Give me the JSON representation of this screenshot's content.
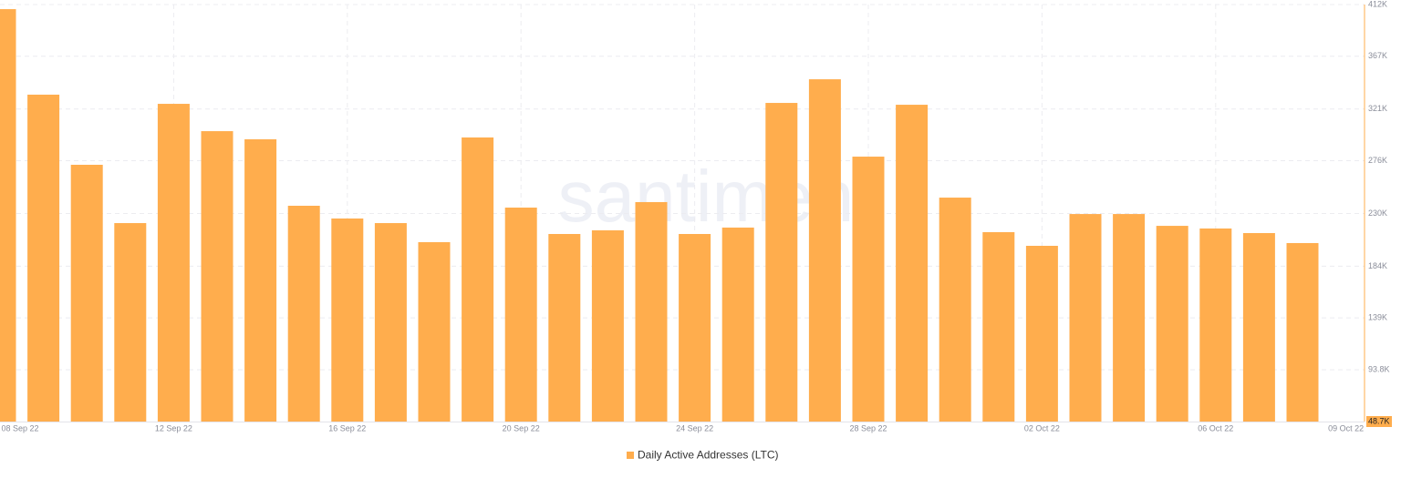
{
  "chart_data": {
    "type": "bar",
    "watermark": "santiment",
    "categories": [
      "08 Sep 22",
      null,
      null,
      null,
      "12 Sep 22",
      null,
      null,
      null,
      "16 Sep 22",
      null,
      null,
      null,
      "20 Sep 22",
      null,
      null,
      null,
      "24 Sep 22",
      null,
      null,
      null,
      "28 Sep 22",
      null,
      null,
      null,
      "02 Oct 22",
      null,
      null,
      null,
      "06 Oct 22",
      null,
      null,
      "09 Oct 22"
    ],
    "series": [
      {
        "name": "Daily Active Addresses (LTC)",
        "color": "#ffad4d",
        "values": [
          408000,
          333500,
          272400,
          221600,
          325500,
          301700,
          294600,
          236700,
          225600,
          221600,
          205000,
          296200,
          235100,
          212100,
          215300,
          239900,
          212100,
          217700,
          326300,
          346900,
          279500,
          324700,
          243800,
          213700,
          201800,
          229500,
          229500,
          219200,
          216900,
          212900,
          204200,
          null
        ]
      }
    ],
    "ylim": [
      48700,
      412000
    ],
    "yticks": [
      {
        "value": 48700,
        "label": "48.7K"
      },
      {
        "value": 93800,
        "label": "93.8K"
      },
      {
        "value": 139000,
        "label": "139K"
      },
      {
        "value": 184000,
        "label": "184K"
      },
      {
        "value": 230000,
        "label": "230K"
      },
      {
        "value": 276000,
        "label": "276K"
      },
      {
        "value": 321000,
        "label": "321K"
      },
      {
        "value": 367000,
        "label": "367K"
      },
      {
        "value": 412000,
        "label": "412K"
      }
    ],
    "grid": true,
    "legend": "bottom"
  }
}
